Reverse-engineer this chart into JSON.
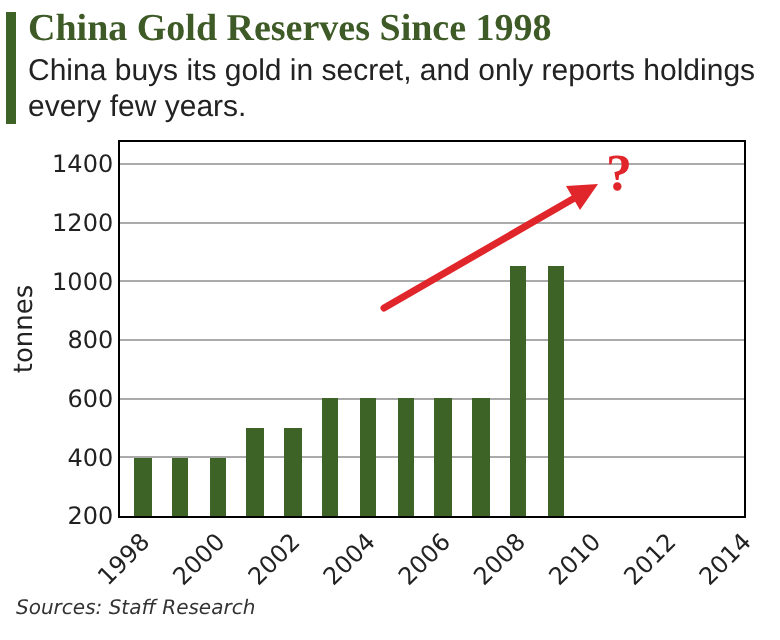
{
  "chart_data": {
    "type": "bar",
    "title": "China Gold Reserves Since 1998",
    "subtitle": "China buys its gold in secret, and only reports holdings every few years.",
    "ylabel": "tonnes",
    "x": [
      1998,
      1999,
      2000,
      2001,
      2002,
      2003,
      2004,
      2005,
      2006,
      2007,
      2008,
      2009
    ],
    "values": [
      400,
      400,
      400,
      500,
      500,
      600,
      600,
      600,
      600,
      600,
      1054,
      1054
    ],
    "color": "#3e6326",
    "xlim": [
      1997.4,
      2014
    ],
    "xticks": [
      1998,
      2000,
      2002,
      2004,
      2006,
      2008,
      2010,
      2012,
      2014
    ],
    "ylim": [
      200,
      1475
    ],
    "yticks": [
      200,
      400,
      600,
      800,
      1000,
      1200,
      1400
    ],
    "grid": "y",
    "annotations": [
      "?",
      "Sources: Staff Research"
    ]
  }
}
